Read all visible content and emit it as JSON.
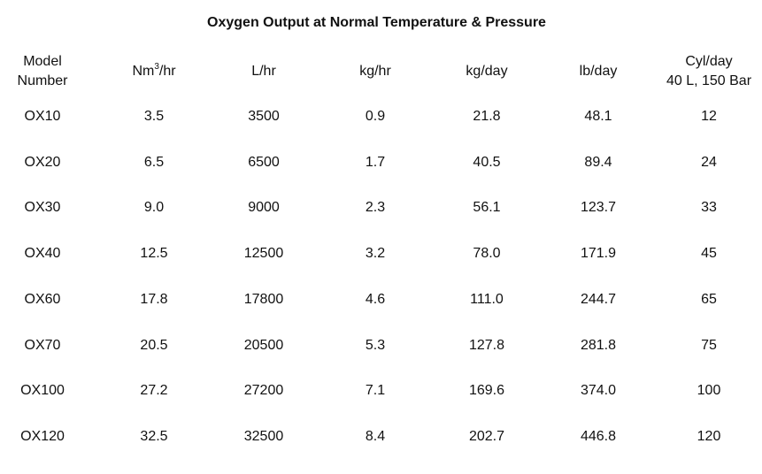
{
  "title": "Oxygen Output at Normal Temperature & Pressure",
  "headers": {
    "model_line1": "Model",
    "model_line2": "Number",
    "nm3_base": "Nm",
    "nm3_sup": "3",
    "nm3_unit": "/hr",
    "l_hr": "L/hr",
    "kg_hr": "kg/hr",
    "kg_day": "kg/day",
    "lb_day": "lb/day",
    "cyl_line1": "Cyl/day",
    "cyl_line2": "40 L, 150 Bar"
  },
  "rows": [
    [
      "OX10",
      "3.5",
      "3500",
      "0.9",
      "21.8",
      "48.1",
      "12"
    ],
    [
      "OX20",
      "6.5",
      "6500",
      "1.7",
      "40.5",
      "89.4",
      "24"
    ],
    [
      "OX30",
      "9.0",
      "9000",
      "2.3",
      "56.1",
      "123.7",
      "33"
    ],
    [
      "OX40",
      "12.5",
      "12500",
      "3.2",
      "78.0",
      "171.9",
      "45"
    ],
    [
      "OX60",
      "17.8",
      "17800",
      "4.6",
      "111.0",
      "244.7",
      "65"
    ],
    [
      "OX70",
      "20.5",
      "20500",
      "5.3",
      "127.8",
      "281.8",
      "75"
    ],
    [
      "OX100",
      "27.2",
      "27200",
      "7.1",
      "169.6",
      "374.0",
      "100"
    ],
    [
      "OX120",
      "32.5",
      "32500",
      "8.4",
      "202.7",
      "446.8",
      "120"
    ]
  ]
}
